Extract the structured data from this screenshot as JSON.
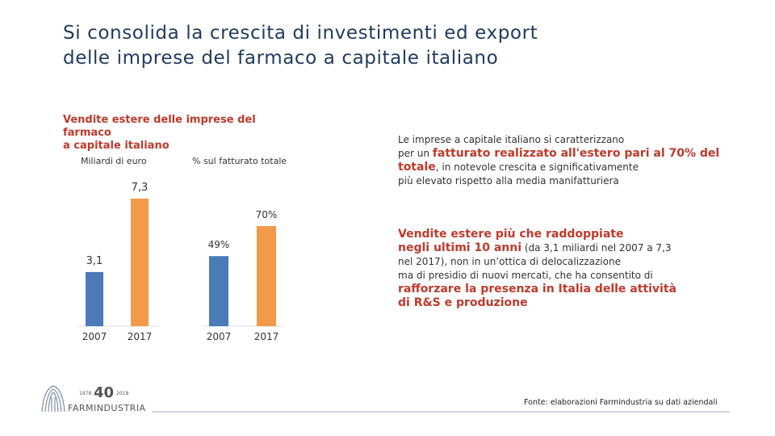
{
  "title": {
    "line1": "Si consolida la crescita di investimenti ed export",
    "line2": "delle imprese del farmaco a capitale italiano"
  },
  "chart_heading": {
    "line1": "Vendite estere delle imprese del farmaco",
    "line2": "a capitale italiano"
  },
  "chart_data": [
    {
      "type": "bar",
      "ylabel": "Miliardi di euro",
      "categories": [
        "2007",
        "2017"
      ],
      "values": [
        3.1,
        7.3
      ],
      "value_labels": [
        "3,1",
        "7,3"
      ],
      "colors": [
        "#4a7ab8",
        "#f39a4a"
      ],
      "ylim": [
        0,
        7.3
      ]
    },
    {
      "type": "bar",
      "ylabel": "% sul fatturato totale",
      "categories": [
        "2007",
        "2017"
      ],
      "values": [
        49,
        70
      ],
      "value_labels": [
        "49%",
        "70%"
      ],
      "colors": [
        "#4a7ab8",
        "#f39a4a"
      ],
      "ylim": [
        0,
        70
      ]
    }
  ],
  "right": {
    "p1_a": "Le imprese a capitale italiano si caratterizzano",
    "p1_b": "per un ",
    "p1_hl1": "fatturato realizzato all'estero pari al 70% del",
    "p1_hl2": "totale",
    "p1_c": ", in notevole crescita e significativamente",
    "p1_d": "più elevato rispetto alla media manifatturiera",
    "p2_hl1": "Vendite estere più che raddoppiate",
    "p2_hl2": "negli ultimi 10 anni",
    "p2_a": " (da 3,1 miliardi nel 2007 a 7,3",
    "p2_b": "nel 2017), non in un’ottica di delocalizzazione",
    "p2_c": "ma di presidio di nuovi mercati, che ha consentito di",
    "p2_hl3": "rafforzare la presenza in Italia delle attività",
    "p2_hl4": "di R&S e produzione"
  },
  "logo": {
    "year_start": "1978",
    "anniversary": "40",
    "year_end": "2018",
    "name": "FARMINDUSTRIA"
  },
  "source": "Fonte: elaborazioni Farmindustria su dati aziendali"
}
